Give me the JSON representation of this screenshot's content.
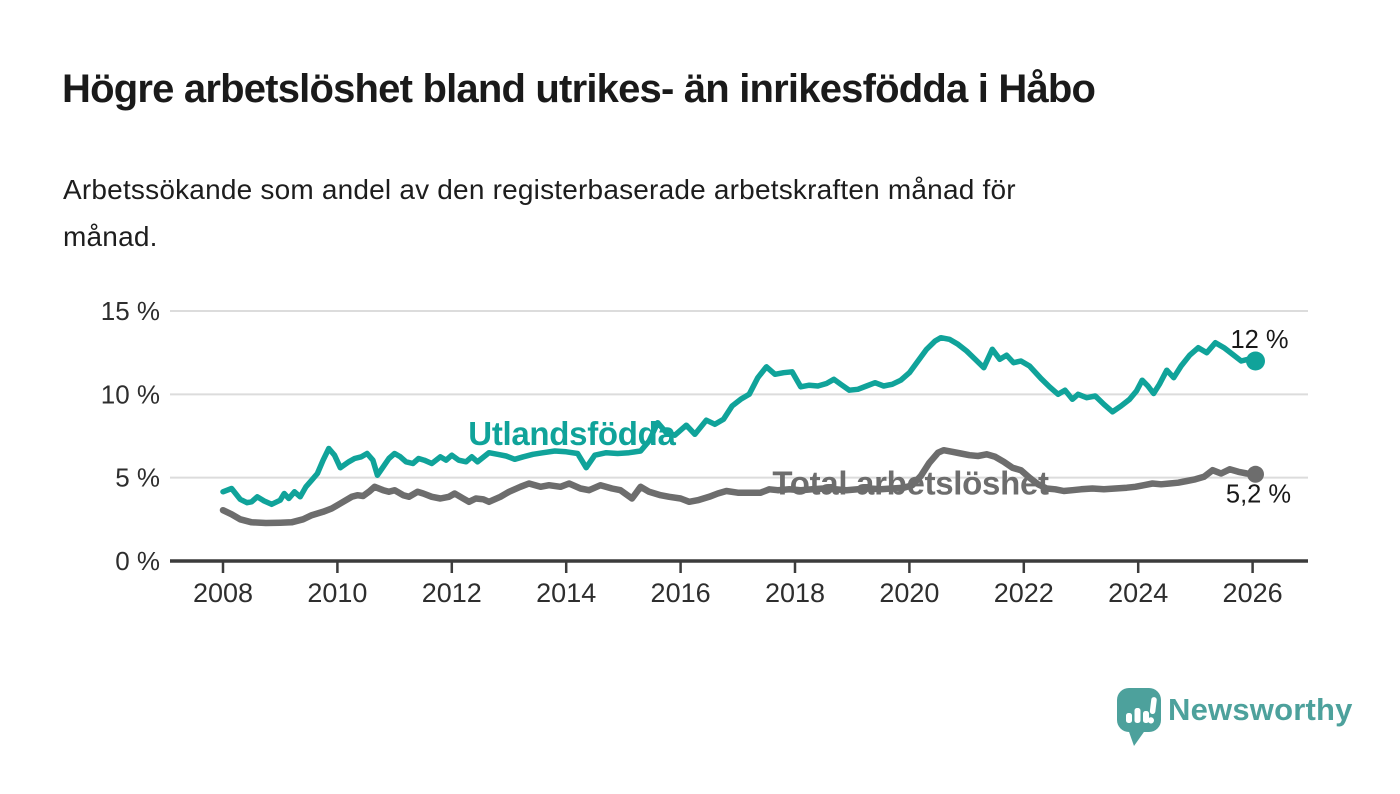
{
  "title": "Högre arbetslöshet bland utrikes- än inrikesfödda i Håbo",
  "subtitle_lines": [
    "Arbetssökande som andel av den registerbaserade arbetskraften månad för",
    "månad."
  ],
  "branding": {
    "name": "Newsworthy",
    "color": "#4da19c",
    "icon": "speech-bubble-bar-chart-exclamation"
  },
  "chart_data": {
    "type": "line",
    "title": "Högre arbetslöshet bland utrikes- än inrikesfödda i Håbo",
    "xlabel": "",
    "ylabel": "",
    "ylim": [
      0,
      15
    ],
    "x_range_years": [
      2008.0,
      2026.05
    ],
    "grid": "horizontal",
    "legend_position": "inline-labels",
    "x_axis": {
      "ticks": [
        2008,
        2010,
        2012,
        2014,
        2016,
        2018,
        2020,
        2022,
        2024,
        2026
      ],
      "labels": [
        "2008",
        "2010",
        "2012",
        "2014",
        "2016",
        "2018",
        "2020",
        "2022",
        "2024",
        "2026"
      ]
    },
    "y_axis": {
      "ticks": [
        0,
        5,
        10,
        15
      ],
      "labels": [
        "0 %",
        "5 %",
        "10 %",
        "15 %"
      ]
    },
    "series": [
      {
        "name": "Utlandsfödda",
        "color": "#10a39a",
        "end_label": "12 %",
        "end_value": 12.0,
        "points": [
          [
            2008.0,
            4.15
          ],
          [
            2008.15,
            4.35
          ],
          [
            2008.3,
            3.7
          ],
          [
            2008.42,
            3.5
          ],
          [
            2008.5,
            3.55
          ],
          [
            2008.6,
            3.85
          ],
          [
            2008.72,
            3.6
          ],
          [
            2008.85,
            3.4
          ],
          [
            2009.0,
            3.65
          ],
          [
            2009.07,
            4.05
          ],
          [
            2009.15,
            3.75
          ],
          [
            2009.25,
            4.15
          ],
          [
            2009.35,
            3.85
          ],
          [
            2009.45,
            4.45
          ],
          [
            2009.55,
            4.85
          ],
          [
            2009.65,
            5.25
          ],
          [
            2009.75,
            6.05
          ],
          [
            2009.85,
            6.75
          ],
          [
            2009.95,
            6.35
          ],
          [
            2010.05,
            5.6
          ],
          [
            2010.2,
            5.95
          ],
          [
            2010.3,
            6.15
          ],
          [
            2010.42,
            6.25
          ],
          [
            2010.52,
            6.45
          ],
          [
            2010.62,
            6.05
          ],
          [
            2010.7,
            5.15
          ],
          [
            2010.8,
            5.65
          ],
          [
            2010.9,
            6.15
          ],
          [
            2011.0,
            6.45
          ],
          [
            2011.1,
            6.25
          ],
          [
            2011.2,
            5.95
          ],
          [
            2011.32,
            5.85
          ],
          [
            2011.42,
            6.15
          ],
          [
            2011.52,
            6.05
          ],
          [
            2011.65,
            5.85
          ],
          [
            2011.8,
            6.25
          ],
          [
            2011.9,
            6.05
          ],
          [
            2012.0,
            6.35
          ],
          [
            2012.12,
            6.05
          ],
          [
            2012.25,
            5.95
          ],
          [
            2012.35,
            6.25
          ],
          [
            2012.45,
            5.95
          ],
          [
            2012.65,
            6.5
          ],
          [
            2012.8,
            6.4
          ],
          [
            2012.95,
            6.3
          ],
          [
            2013.1,
            6.1
          ],
          [
            2013.25,
            6.25
          ],
          [
            2013.42,
            6.4
          ],
          [
            2013.6,
            6.5
          ],
          [
            2013.8,
            6.6
          ],
          [
            2014.0,
            6.55
          ],
          [
            2014.2,
            6.45
          ],
          [
            2014.35,
            5.6
          ],
          [
            2014.5,
            6.35
          ],
          [
            2014.7,
            6.5
          ],
          [
            2014.9,
            6.45
          ],
          [
            2015.1,
            6.5
          ],
          [
            2015.3,
            6.6
          ],
          [
            2015.45,
            7.2
          ],
          [
            2015.6,
            8.3
          ],
          [
            2015.75,
            7.7
          ],
          [
            2015.9,
            7.55
          ],
          [
            2016.1,
            8.15
          ],
          [
            2016.25,
            7.6
          ],
          [
            2016.45,
            8.45
          ],
          [
            2016.6,
            8.2
          ],
          [
            2016.75,
            8.5
          ],
          [
            2016.9,
            9.3
          ],
          [
            2017.05,
            9.7
          ],
          [
            2017.2,
            10.0
          ],
          [
            2017.35,
            11.0
          ],
          [
            2017.5,
            11.65
          ],
          [
            2017.65,
            11.2
          ],
          [
            2017.8,
            11.3
          ],
          [
            2017.95,
            11.35
          ],
          [
            2018.1,
            10.45
          ],
          [
            2018.25,
            10.55
          ],
          [
            2018.4,
            10.5
          ],
          [
            2018.55,
            10.65
          ],
          [
            2018.68,
            10.9
          ],
          [
            2018.8,
            10.6
          ],
          [
            2018.95,
            10.25
          ],
          [
            2019.1,
            10.3
          ],
          [
            2019.25,
            10.5
          ],
          [
            2019.4,
            10.7
          ],
          [
            2019.55,
            10.5
          ],
          [
            2019.7,
            10.6
          ],
          [
            2019.85,
            10.85
          ],
          [
            2020.0,
            11.3
          ],
          [
            2020.15,
            12.0
          ],
          [
            2020.3,
            12.7
          ],
          [
            2020.45,
            13.2
          ],
          [
            2020.55,
            13.4
          ],
          [
            2020.7,
            13.3
          ],
          [
            2020.85,
            13.0
          ],
          [
            2021.0,
            12.6
          ],
          [
            2021.15,
            12.1
          ],
          [
            2021.3,
            11.6
          ],
          [
            2021.45,
            12.7
          ],
          [
            2021.58,
            12.1
          ],
          [
            2021.7,
            12.35
          ],
          [
            2021.82,
            11.9
          ],
          [
            2021.95,
            12.0
          ],
          [
            2022.1,
            11.7
          ],
          [
            2022.3,
            10.95
          ],
          [
            2022.45,
            10.45
          ],
          [
            2022.6,
            10.0
          ],
          [
            2022.72,
            10.25
          ],
          [
            2022.85,
            9.7
          ],
          [
            2022.95,
            10.0
          ],
          [
            2023.1,
            9.8
          ],
          [
            2023.25,
            9.9
          ],
          [
            2023.4,
            9.4
          ],
          [
            2023.55,
            8.95
          ],
          [
            2023.7,
            9.3
          ],
          [
            2023.85,
            9.7
          ],
          [
            2023.97,
            10.2
          ],
          [
            2024.07,
            10.85
          ],
          [
            2024.17,
            10.5
          ],
          [
            2024.27,
            10.05
          ],
          [
            2024.37,
            10.6
          ],
          [
            2024.5,
            11.45
          ],
          [
            2024.62,
            11.0
          ],
          [
            2024.75,
            11.7
          ],
          [
            2024.9,
            12.35
          ],
          [
            2025.05,
            12.8
          ],
          [
            2025.2,
            12.5
          ],
          [
            2025.35,
            13.1
          ],
          [
            2025.5,
            12.8
          ],
          [
            2025.65,
            12.4
          ],
          [
            2025.8,
            12.0
          ],
          [
            2025.92,
            12.1
          ],
          [
            2026.05,
            12.0
          ]
        ]
      },
      {
        "name": "Total arbetslöshet",
        "color": "#6d6d6d",
        "end_label": "5,2 %",
        "end_value": 5.2,
        "points": [
          [
            2008.0,
            3.05
          ],
          [
            2008.15,
            2.8
          ],
          [
            2008.3,
            2.5
          ],
          [
            2008.5,
            2.32
          ],
          [
            2008.75,
            2.28
          ],
          [
            2009.0,
            2.3
          ],
          [
            2009.2,
            2.32
          ],
          [
            2009.4,
            2.5
          ],
          [
            2009.55,
            2.75
          ],
          [
            2009.75,
            2.95
          ],
          [
            2009.9,
            3.15
          ],
          [
            2010.05,
            3.45
          ],
          [
            2010.25,
            3.85
          ],
          [
            2010.35,
            3.95
          ],
          [
            2010.45,
            3.9
          ],
          [
            2010.55,
            4.15
          ],
          [
            2010.65,
            4.45
          ],
          [
            2010.8,
            4.25
          ],
          [
            2010.9,
            4.15
          ],
          [
            2011.0,
            4.25
          ],
          [
            2011.15,
            3.95
          ],
          [
            2011.25,
            3.85
          ],
          [
            2011.4,
            4.15
          ],
          [
            2011.5,
            4.05
          ],
          [
            2011.65,
            3.85
          ],
          [
            2011.8,
            3.75
          ],
          [
            2011.95,
            3.85
          ],
          [
            2012.05,
            4.05
          ],
          [
            2012.2,
            3.75
          ],
          [
            2012.3,
            3.55
          ],
          [
            2012.42,
            3.75
          ],
          [
            2012.55,
            3.7
          ],
          [
            2012.65,
            3.55
          ],
          [
            2012.85,
            3.85
          ],
          [
            2013.0,
            4.15
          ],
          [
            2013.2,
            4.45
          ],
          [
            2013.35,
            4.65
          ],
          [
            2013.55,
            4.45
          ],
          [
            2013.7,
            4.55
          ],
          [
            2013.9,
            4.45
          ],
          [
            2014.05,
            4.65
          ],
          [
            2014.25,
            4.35
          ],
          [
            2014.4,
            4.25
          ],
          [
            2014.6,
            4.55
          ],
          [
            2014.8,
            4.35
          ],
          [
            2014.95,
            4.25
          ],
          [
            2015.15,
            3.75
          ],
          [
            2015.3,
            4.45
          ],
          [
            2015.45,
            4.15
          ],
          [
            2015.65,
            3.95
          ],
          [
            2015.8,
            3.85
          ],
          [
            2016.0,
            3.75
          ],
          [
            2016.15,
            3.55
          ],
          [
            2016.3,
            3.65
          ],
          [
            2016.5,
            3.85
          ],
          [
            2016.65,
            4.05
          ],
          [
            2016.8,
            4.2
          ],
          [
            2017.0,
            4.1
          ],
          [
            2017.2,
            4.1
          ],
          [
            2017.4,
            4.1
          ],
          [
            2017.55,
            4.3
          ],
          [
            2017.7,
            4.25
          ],
          [
            2017.9,
            4.3
          ],
          [
            2018.1,
            4.25
          ],
          [
            2018.3,
            4.3
          ],
          [
            2018.5,
            4.35
          ],
          [
            2018.7,
            4.3
          ],
          [
            2018.9,
            4.25
          ],
          [
            2019.1,
            4.3
          ],
          [
            2019.3,
            4.35
          ],
          [
            2019.5,
            4.3
          ],
          [
            2019.7,
            4.35
          ],
          [
            2019.9,
            4.4
          ],
          [
            2020.05,
            4.55
          ],
          [
            2020.2,
            5.1
          ],
          [
            2020.35,
            5.9
          ],
          [
            2020.5,
            6.5
          ],
          [
            2020.6,
            6.65
          ],
          [
            2020.75,
            6.55
          ],
          [
            2020.9,
            6.45
          ],
          [
            2021.05,
            6.35
          ],
          [
            2021.2,
            6.3
          ],
          [
            2021.35,
            6.4
          ],
          [
            2021.5,
            6.25
          ],
          [
            2021.65,
            5.95
          ],
          [
            2021.8,
            5.6
          ],
          [
            2021.95,
            5.45
          ],
          [
            2022.1,
            5.0
          ],
          [
            2022.25,
            4.6
          ],
          [
            2022.4,
            4.35
          ],
          [
            2022.55,
            4.3
          ],
          [
            2022.7,
            4.2
          ],
          [
            2022.85,
            4.25
          ],
          [
            2023.0,
            4.3
          ],
          [
            2023.2,
            4.35
          ],
          [
            2023.4,
            4.3
          ],
          [
            2023.6,
            4.35
          ],
          [
            2023.8,
            4.4
          ],
          [
            2023.95,
            4.45
          ],
          [
            2024.1,
            4.55
          ],
          [
            2024.25,
            4.65
          ],
          [
            2024.4,
            4.6
          ],
          [
            2024.55,
            4.65
          ],
          [
            2024.7,
            4.7
          ],
          [
            2024.85,
            4.8
          ],
          [
            2025.0,
            4.9
          ],
          [
            2025.15,
            5.05
          ],
          [
            2025.3,
            5.45
          ],
          [
            2025.45,
            5.25
          ],
          [
            2025.6,
            5.5
          ],
          [
            2025.75,
            5.35
          ],
          [
            2025.9,
            5.25
          ],
          [
            2026.05,
            5.2
          ]
        ]
      }
    ]
  }
}
